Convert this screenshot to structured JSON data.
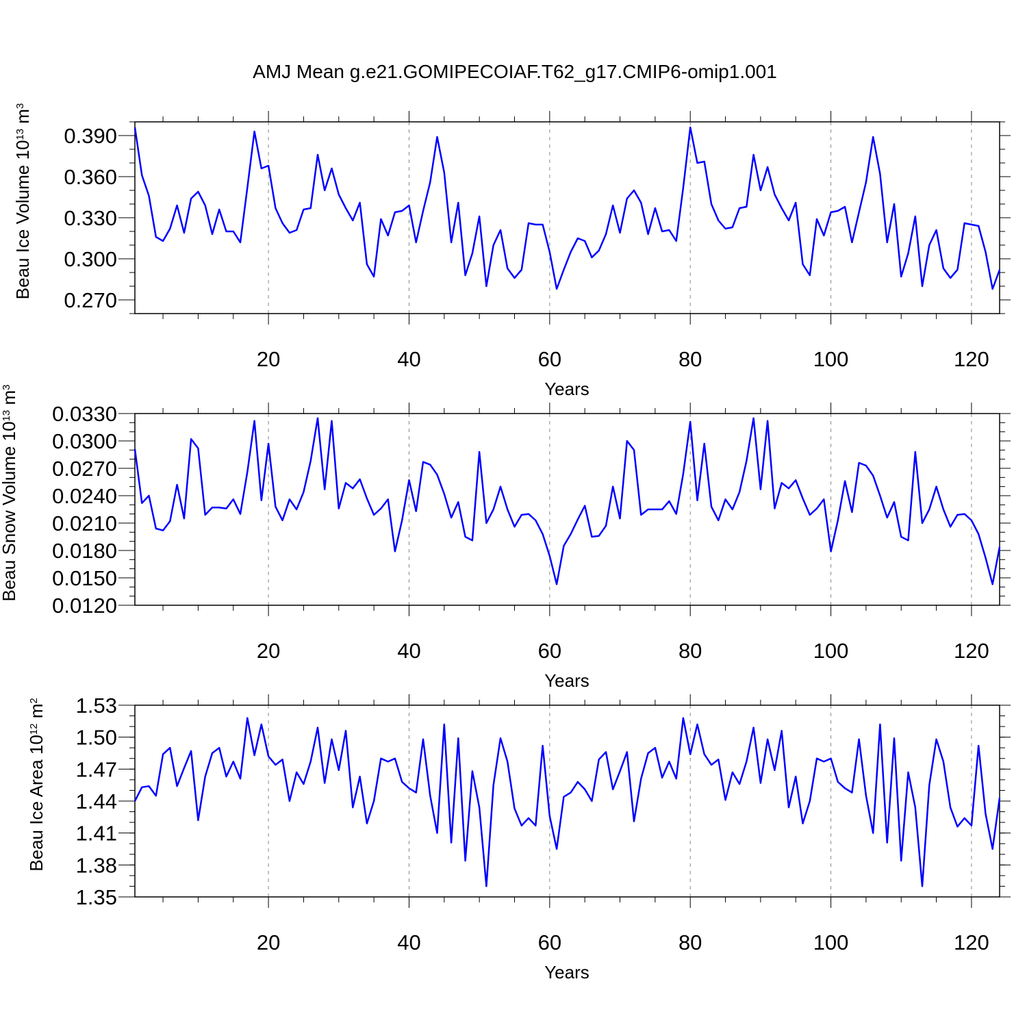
{
  "title": "AMJ Mean g.e21.GOMIPECOIAF.T62_g17.CMIP6-omip1.001",
  "colors": {
    "series": "#0000ff",
    "axis": "#000000",
    "grid": "#888888"
  },
  "chart_data": [
    {
      "type": "line",
      "ylabel": {
        "prefix": "Beau Ice Volume 10",
        "exponent": "13",
        "unit": " m",
        "unit_exponent": "3"
      },
      "xlabel": "Years",
      "xlim": [
        1,
        124
      ],
      "ylim": [
        0.26,
        0.4
      ],
      "xticks": [
        20,
        40,
        60,
        80,
        100,
        120
      ],
      "xtick_labels": [
        "20",
        "40",
        "60",
        "80",
        "100",
        "120"
      ],
      "yticks": [
        0.27,
        0.3,
        0.33,
        0.36,
        0.39
      ],
      "ytick_labels": [
        "0.270",
        "0.300",
        "0.330",
        "0.360",
        "0.390"
      ],
      "grid": "vertical dashed at major x ticks",
      "series": [
        {
          "values": [
            0.396,
            0.361,
            0.346,
            0.316,
            0.313,
            0.322,
            0.339,
            0.319,
            0.344,
            0.349,
            0.339,
            0.318,
            0.336,
            0.32,
            0.32,
            0.312,
            0.352,
            0.393,
            0.366,
            0.368,
            0.337,
            0.326,
            0.319,
            0.321,
            0.336,
            0.337,
            0.376,
            0.35,
            0.366,
            0.347,
            0.337,
            0.328,
            0.341,
            0.296,
            0.287,
            0.329,
            0.317,
            0.334,
            0.335,
            0.339,
            0.312,
            0.335,
            0.356,
            0.389,
            0.363,
            0.312,
            0.341,
            0.288,
            0.304,
            0.331,
            0.28,
            0.31,
            0.321,
            0.293,
            0.286,
            0.292,
            0.326,
            0.325,
            0.325,
            0.305,
            0.278,
            0.292,
            0.305,
            0.315,
            0.313,
            0.301,
            0.306,
            0.318,
            0.339,
            0.319,
            0.344,
            0.35,
            0.341,
            0.318,
            0.337,
            0.32,
            0.321,
            0.313,
            0.352,
            0.396,
            0.37,
            0.371,
            0.34,
            0.328,
            0.322,
            0.323,
            0.337,
            0.338,
            0.376,
            0.35,
            0.367,
            0.347,
            0.337,
            0.328,
            0.341,
            0.296,
            0.288,
            0.329,
            0.317,
            0.334,
            0.335,
            0.338,
            0.312,
            0.334,
            0.356,
            0.389,
            0.362,
            0.312,
            0.34,
            0.287,
            0.304,
            0.331,
            0.28,
            0.31,
            0.321,
            0.293,
            0.286,
            0.292,
            0.326,
            0.325,
            0.324,
            0.305,
            0.278,
            0.292
          ]
        }
      ]
    },
    {
      "type": "line",
      "ylabel": {
        "prefix": "Beau Snow Volume 10",
        "exponent": "13",
        "unit": " m",
        "unit_exponent": "3"
      },
      "xlabel": "Years",
      "xlim": [
        1,
        124
      ],
      "ylim": [
        0.012,
        0.033
      ],
      "xticks": [
        20,
        40,
        60,
        80,
        100,
        120
      ],
      "xtick_labels": [
        "20",
        "40",
        "60",
        "80",
        "100",
        "120"
      ],
      "yticks": [
        0.012,
        0.015,
        0.018,
        0.021,
        0.024,
        0.027,
        0.03,
        0.033
      ],
      "ytick_labels": [
        "0.0120",
        "0.0150",
        "0.0180",
        "0.0210",
        "0.0240",
        "0.0270",
        "0.0300",
        "0.0330"
      ],
      "grid": "vertical dashed at major x ticks",
      "series": [
        {
          "values": [
            0.0291,
            0.0232,
            0.024,
            0.0204,
            0.0202,
            0.0212,
            0.0252,
            0.0215,
            0.0302,
            0.0292,
            0.0219,
            0.0227,
            0.0227,
            0.0226,
            0.0236,
            0.022,
            0.0266,
            0.0322,
            0.0235,
            0.0297,
            0.0228,
            0.0213,
            0.0236,
            0.0225,
            0.0244,
            0.0278,
            0.0325,
            0.0247,
            0.0322,
            0.0226,
            0.0254,
            0.0248,
            0.0258,
            0.0237,
            0.0219,
            0.0226,
            0.0236,
            0.0179,
            0.0213,
            0.0257,
            0.0223,
            0.0277,
            0.0274,
            0.0263,
            0.0242,
            0.0216,
            0.0233,
            0.0195,
            0.0191,
            0.0288,
            0.021,
            0.0225,
            0.025,
            0.0225,
            0.0206,
            0.0219,
            0.022,
            0.0213,
            0.0198,
            0.0174,
            0.0143,
            0.0185,
            0.0198,
            0.0214,
            0.0229,
            0.0195,
            0.0196,
            0.0207,
            0.025,
            0.0215,
            0.03,
            0.029,
            0.0219,
            0.0225,
            0.0225,
            0.0225,
            0.0234,
            0.022,
            0.0264,
            0.0321,
            0.0235,
            0.0297,
            0.0228,
            0.0213,
            0.0236,
            0.0225,
            0.0244,
            0.0278,
            0.0325,
            0.0247,
            0.0322,
            0.0226,
            0.0254,
            0.0248,
            0.0257,
            0.0237,
            0.0219,
            0.0226,
            0.0236,
            0.0179,
            0.0213,
            0.0256,
            0.0222,
            0.0276,
            0.0273,
            0.0262,
            0.024,
            0.0216,
            0.0233,
            0.0195,
            0.0191,
            0.0288,
            0.021,
            0.0225,
            0.025,
            0.0225,
            0.0206,
            0.0219,
            0.022,
            0.0213,
            0.0198,
            0.0172,
            0.0143,
            0.0184
          ]
        }
      ]
    },
    {
      "type": "line",
      "ylabel": {
        "prefix": "Beau Ice Area 10",
        "exponent": "12",
        "unit": " m",
        "unit_exponent": "2"
      },
      "xlabel": "Years",
      "xlim": [
        1,
        124
      ],
      "ylim": [
        1.35,
        1.53
      ],
      "xticks": [
        20,
        40,
        60,
        80,
        100,
        120
      ],
      "xtick_labels": [
        "20",
        "40",
        "60",
        "80",
        "100",
        "120"
      ],
      "yticks": [
        1.35,
        1.38,
        1.41,
        1.44,
        1.47,
        1.5,
        1.53
      ],
      "ytick_labels": [
        "1.35",
        "1.38",
        "1.41",
        "1.44",
        "1.47",
        "1.50",
        "1.53"
      ],
      "grid": "vertical dashed at major x ticks",
      "series": [
        {
          "values": [
            1.44,
            1.453,
            1.454,
            1.445,
            1.484,
            1.49,
            1.454,
            1.471,
            1.487,
            1.422,
            1.463,
            1.485,
            1.49,
            1.463,
            1.477,
            1.461,
            1.518,
            1.483,
            1.512,
            1.482,
            1.474,
            1.479,
            1.44,
            1.467,
            1.456,
            1.477,
            1.509,
            1.457,
            1.498,
            1.469,
            1.506,
            1.434,
            1.463,
            1.419,
            1.44,
            1.48,
            1.477,
            1.48,
            1.458,
            1.452,
            1.448,
            1.498,
            1.445,
            1.41,
            1.512,
            1.401,
            1.499,
            1.384,
            1.468,
            1.434,
            1.36,
            1.455,
            1.499,
            1.477,
            1.433,
            1.417,
            1.424,
            1.417,
            1.492,
            1.426,
            1.395,
            1.444,
            1.448,
            1.458,
            1.451,
            1.44,
            1.479,
            1.486,
            1.451,
            1.468,
            1.486,
            1.421,
            1.461,
            1.485,
            1.49,
            1.462,
            1.477,
            1.461,
            1.518,
            1.484,
            1.512,
            1.484,
            1.474,
            1.479,
            1.441,
            1.467,
            1.456,
            1.477,
            1.509,
            1.457,
            1.498,
            1.469,
            1.506,
            1.434,
            1.463,
            1.419,
            1.44,
            1.48,
            1.477,
            1.48,
            1.458,
            1.452,
            1.448,
            1.498,
            1.445,
            1.41,
            1.512,
            1.401,
            1.499,
            1.384,
            1.467,
            1.434,
            1.36,
            1.455,
            1.498,
            1.477,
            1.434,
            1.416,
            1.424,
            1.417,
            1.492,
            1.428,
            1.395,
            1.443
          ]
        }
      ]
    }
  ]
}
